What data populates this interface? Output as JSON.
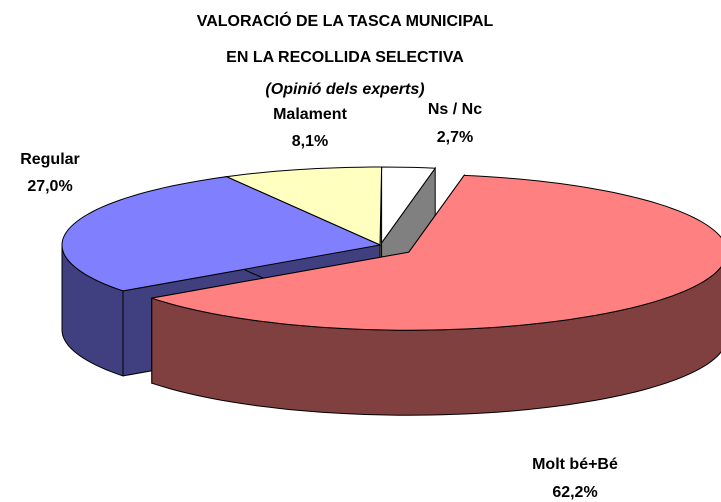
{
  "chart_data": {
    "type": "pie3d",
    "title": [
      "VALORACIÓ DE LA TASCA MUNICIPAL",
      "EN LA RECOLLIDA SELECTIVA"
    ],
    "subtitle": "(Opinió dels experts)",
    "categories": [
      "Molt bé+Bé",
      "Regular",
      "Malament",
      "Ns / Nc"
    ],
    "values": [
      62.2,
      27.0,
      8.1,
      2.7
    ],
    "value_labels": [
      "62,2%",
      "27,0%",
      "8,1%",
      "2,7%"
    ],
    "colors": [
      "#ff8080",
      "#8080ff",
      "#ffffc0",
      "#ffffff"
    ]
  }
}
